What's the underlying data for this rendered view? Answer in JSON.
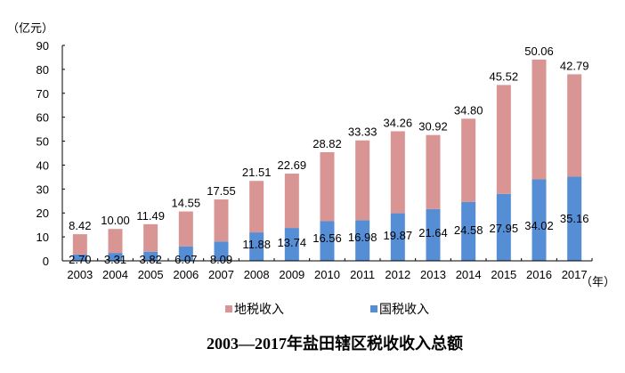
{
  "chart_data": {
    "type": "bar",
    "stacked": true,
    "title": "2003—2017年盐田辖区税收收入总额",
    "ylabel": "（亿元）",
    "xlabel": "（年）",
    "ylim": [
      0,
      90
    ],
    "yticks": [
      0,
      10,
      20,
      30,
      40,
      50,
      60,
      70,
      80,
      90
    ],
    "categories": [
      "2003",
      "2004",
      "2005",
      "2006",
      "2007",
      "2008",
      "2009",
      "2010",
      "2011",
      "2012",
      "2013",
      "2014",
      "2015",
      "2016",
      "2017"
    ],
    "series": [
      {
        "name": "国税收入",
        "color": "#558ed5",
        "values": [
          2.7,
          3.31,
          3.82,
          6.07,
          8.09,
          11.88,
          13.74,
          16.56,
          16.98,
          19.87,
          21.64,
          24.58,
          27.95,
          34.02,
          35.16
        ],
        "labels": [
          "2.70",
          "3.31",
          "3.82",
          "6.07",
          "8.09",
          "11.88",
          "13.74",
          "16.56",
          "16.98",
          "19.87",
          "21.64",
          "24.58",
          "27.95",
          "34.02",
          "35.16"
        ]
      },
      {
        "name": "地税收入",
        "color": "#d99594",
        "values": [
          8.42,
          10.0,
          11.49,
          14.55,
          17.55,
          21.51,
          22.69,
          28.82,
          33.33,
          34.26,
          30.92,
          34.8,
          45.52,
          50.06,
          42.79
        ],
        "labels": [
          "8.42",
          "10.00",
          "11.49",
          "14.55",
          "17.55",
          "21.51",
          "22.69",
          "28.82",
          "33.33",
          "34.26",
          "30.92",
          "34.80",
          "45.52",
          "50.06",
          "42.79"
        ]
      }
    ],
    "legend": {
      "position": "bottom",
      "order": [
        "地税收入",
        "国税收入"
      ]
    },
    "grid": false
  }
}
